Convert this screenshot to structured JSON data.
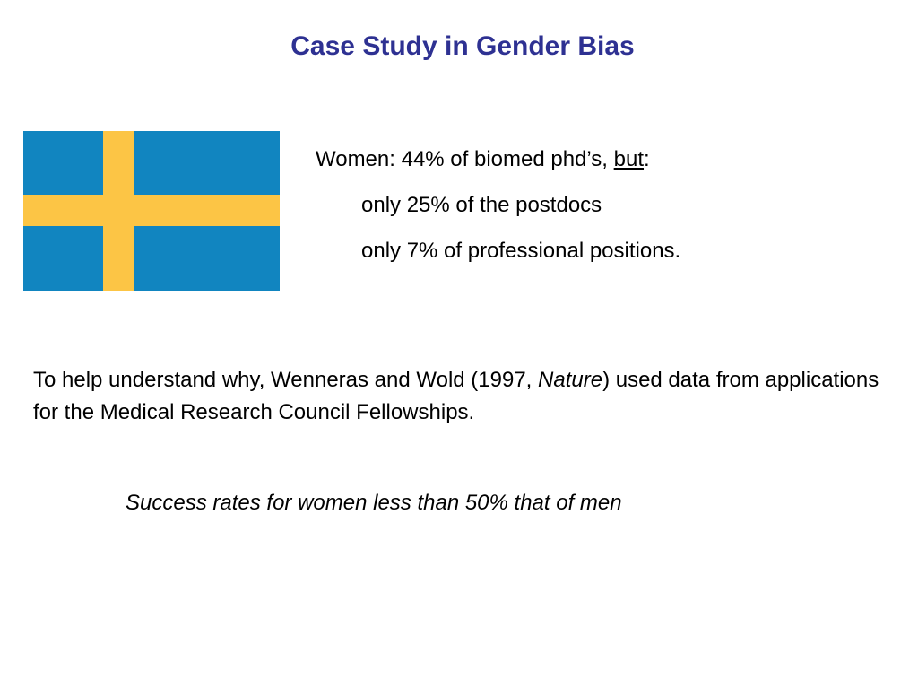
{
  "slide": {
    "title": "Case Study in Gender Bias",
    "flag": {
      "icon": "sweden-flag-icon",
      "field_color": "#1185c0",
      "cross_color": "#fcc545"
    },
    "stats": {
      "intro_prefix": "Women: 44% of biomed phd’s, ",
      "intro_emphasis": "but",
      "intro_suffix": ":",
      "line_postdocs": "only 25% of the postdocs",
      "line_professional": "only 7% of professional positions."
    },
    "paragraph": {
      "text_before": "To help understand why, Wenneras and Wold (1997, ",
      "journal": "Nature",
      "text_after": ") used data from applications for the Medical Research Council Fellowships."
    },
    "summary": "Success rates for women less than 50% that of men"
  },
  "theme": {
    "title_color": "#2e3192"
  }
}
